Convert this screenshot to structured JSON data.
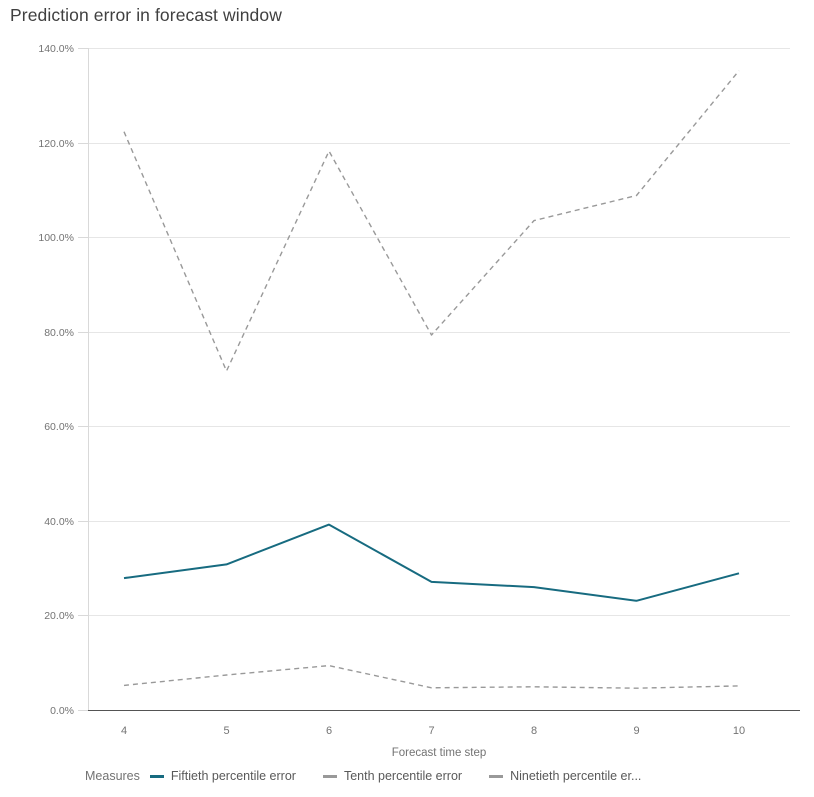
{
  "title": "Prediction error in forecast window",
  "chart_data": {
    "type": "line",
    "title": "Prediction error in forecast window",
    "x": [
      4,
      5,
      6,
      7,
      8,
      9,
      10
    ],
    "series": [
      {
        "name": "Fiftieth percentile error",
        "style": "solid",
        "color": "#176b80",
        "values": [
          27.9,
          30.8,
          39.2,
          27.1,
          26.0,
          23.1,
          28.9
        ]
      },
      {
        "name": "Tenth percentile error",
        "style": "dashed",
        "color": "#999999",
        "values": [
          5.2,
          7.4,
          9.4,
          4.7,
          4.9,
          4.6,
          5.1
        ]
      },
      {
        "name": "Ninetieth percentile error",
        "style": "dashed",
        "color": "#999999",
        "values": [
          122.3,
          71.7,
          118.2,
          79.3,
          103.5,
          108.8,
          135.2
        ]
      }
    ],
    "xlabel": "Forecast time step",
    "ylabel": "",
    "ylim": [
      0,
      140
    ],
    "y_ticks": [
      "0.0%",
      "20.0%",
      "40.0%",
      "60.0%",
      "80.0%",
      "100.0%",
      "120.0%",
      "140.0%"
    ],
    "x_ticks": [
      "4",
      "5",
      "6",
      "7",
      "8",
      "9",
      "10"
    ],
    "grid": "horizontal",
    "legend_position": "bottom"
  },
  "legend": {
    "label": "Measures",
    "items": [
      {
        "label": "Fiftieth percentile error",
        "color": "#176b80"
      },
      {
        "label": "Tenth percentile error",
        "color": "#999999"
      },
      {
        "label": "Ninetieth percentile er...",
        "color": "#999999"
      }
    ]
  },
  "colors": {
    "title_text": "#404040",
    "axis_text": "#737373",
    "gridline": "#e6e6e6",
    "y_axis_line": "#d9d9d9",
    "x_axis_line": "#545454",
    "accent_series": "#176b80"
  }
}
